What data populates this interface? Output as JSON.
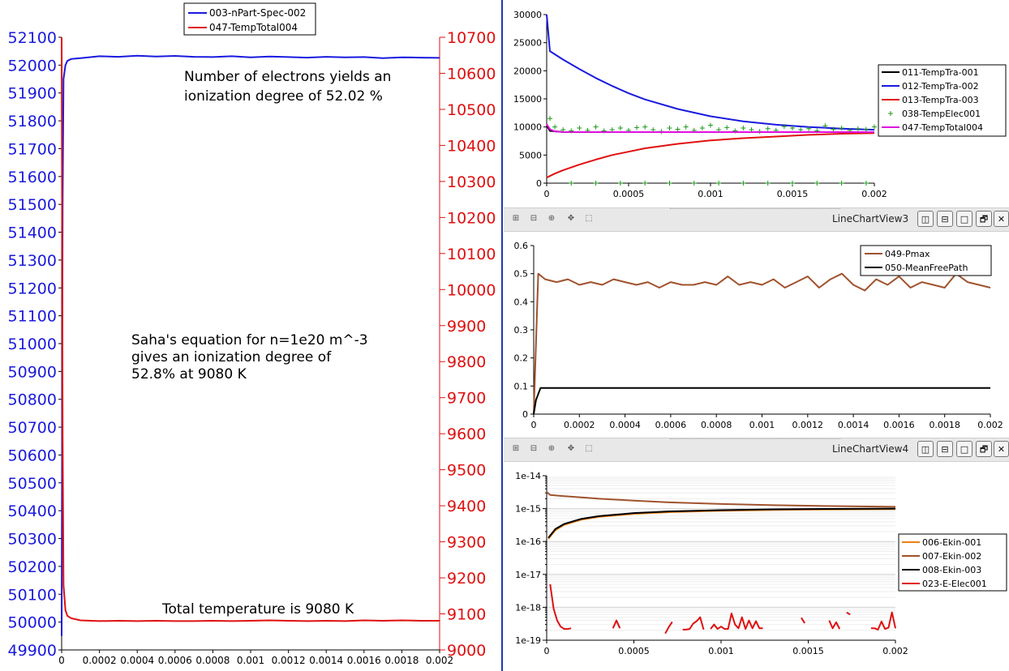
{
  "left_chart": {
    "annotations": {
      "electrons_l1": "Number of electrons yields an",
      "electrons_l2": "ionization degree of 52.02 %",
      "saha_l1": "Saha's equation for n=1e20 m^-3",
      "saha_l2": "gives an ionization degree of",
      "saha_l3": "52.8% at 9080 K",
      "temperature": "Total temperature is 9080 K"
    },
    "legend": [
      "003-nPart-Spec-002",
      "047-TempTotal004"
    ]
  },
  "view3": {
    "title": "LineChartView3"
  },
  "view4": {
    "title": "LineChartView4"
  },
  "window_buttons": {
    "split_h": "◫",
    "split_v": "⊟",
    "maximize": "□",
    "restore": "🗗",
    "close": "✕"
  },
  "toolbar_icons": [
    "zoom-to-data-icon",
    "zoom-out-icon",
    "zoom-in-icon",
    "pick-icon",
    "select-icon"
  ],
  "colors": {
    "blue": "#1a1adf",
    "red": "#e01010",
    "black": "#000000",
    "brown": "#a0522d",
    "green": "#1a9a1a",
    "magenta": "#e010e0",
    "orange": "#f08010",
    "divider": "#2436b8"
  },
  "chart_data": [
    {
      "type": "line",
      "id": "left",
      "xlim": [
        0,
        0.002
      ],
      "xticks": [
        "0",
        "0.0002",
        "0.0004",
        "0.0006",
        "0.0008",
        "0.001",
        "0.0012",
        "0.0014",
        "0.0016",
        "0.0018",
        "0.002"
      ],
      "y_left": {
        "lim": [
          49900,
          52100
        ],
        "ticks": [
          "49900",
          "50000",
          "50100",
          "50200",
          "50300",
          "50400",
          "50500",
          "50600",
          "50700",
          "50800",
          "50900",
          "51000",
          "51100",
          "51200",
          "51300",
          "51400",
          "51500",
          "51600",
          "51700",
          "51800",
          "51900",
          "52000",
          "52100"
        ],
        "color": "#1a1adf"
      },
      "y_right": {
        "lim": [
          9000,
          10700
        ],
        "ticks": [
          "9000",
          "9100",
          "9200",
          "9300",
          "9400",
          "9500",
          "9600",
          "9700",
          "9800",
          "9900",
          "10000",
          "10100",
          "10200",
          "10300",
          "10400",
          "10500",
          "10600",
          "10700"
        ],
        "color": "#e01010"
      },
      "series": [
        {
          "name": "003-nPart-Spec-002",
          "axis": "left",
          "color": "#1a1adf",
          "x": [
            0,
            5e-06,
            1e-05,
            2e-05,
            3e-05,
            5e-05,
            0.0001,
            0.0002,
            0.0003,
            0.0004,
            0.0005,
            0.0006,
            0.0007,
            0.0008,
            0.0009,
            0.001,
            0.0011,
            0.0012,
            0.0013,
            0.0014,
            0.0015,
            0.0016,
            0.0017,
            0.0018,
            0.0019,
            0.002
          ],
          "y": [
            49950,
            51500,
            51950,
            52000,
            52015,
            52022,
            52025,
            52032,
            52030,
            52034,
            52031,
            52033,
            52030,
            52029,
            52032,
            52028,
            52031,
            52029,
            52027,
            52030,
            52028,
            52029,
            52025,
            52028,
            52027,
            52026
          ]
        },
        {
          "name": "047-TempTotal004",
          "axis": "right",
          "color": "#e01010",
          "x": [
            0,
            5e-06,
            1e-05,
            2e-05,
            3e-05,
            5e-05,
            0.0001,
            0.0002,
            0.0003,
            0.0004,
            0.0005,
            0.0006,
            0.0007,
            0.0008,
            0.0009,
            0.001,
            0.0011,
            0.0012,
            0.0013,
            0.0014,
            0.0015,
            0.0016,
            0.0017,
            0.0018,
            0.0019,
            0.002
          ],
          "y": [
            10700,
            9600,
            9180,
            9110,
            9095,
            9088,
            9082,
            9080,
            9081,
            9080,
            9081,
            9080,
            9080,
            9081,
            9080,
            9081,
            9082,
            9081,
            9080,
            9081,
            9080,
            9082,
            9081,
            9082,
            9081,
            9081
          ]
        }
      ]
    },
    {
      "type": "line",
      "id": "top-right",
      "xlim": [
        0,
        0.002
      ],
      "xticks": [
        "0",
        "0.0005",
        "0.001",
        "0.0015",
        "0.002"
      ],
      "ylim": [
        0,
        30000
      ],
      "yticks": [
        "0",
        "5000",
        "10000",
        "15000",
        "20000",
        "25000",
        "30000"
      ],
      "legend": [
        "011-TempTra-001",
        "012-TempTra-002",
        "013-TempTra-003",
        "038-TempElec001",
        "047-TempTotal004"
      ],
      "series": [
        {
          "name": "011-TempTra-001",
          "color": "#000000",
          "x": [
            0,
            2e-05,
            0.0001,
            0.0005,
            0.001,
            0.0015,
            0.002
          ],
          "y": [
            10300,
            9300,
            9100,
            9080,
            9080,
            9080,
            9080
          ]
        },
        {
          "name": "012-TempTra-002",
          "color": "#1a1adf",
          "x": [
            0,
            2e-05,
            0.0001,
            0.0002,
            0.0003,
            0.0004,
            0.0005,
            0.0006,
            0.0008,
            0.001,
            0.0012,
            0.0014,
            0.0016,
            0.0018,
            0.002
          ],
          "y": [
            30000,
            23500,
            22000,
            20300,
            18700,
            17300,
            16000,
            14900,
            13200,
            11900,
            11000,
            10400,
            10000,
            9700,
            9500
          ]
        },
        {
          "name": "013-TempTra-003",
          "color": "#e01010",
          "x": [
            0,
            5e-05,
            0.0001,
            0.0002,
            0.0003,
            0.0004,
            0.0005,
            0.0006,
            0.0008,
            0.001,
            0.0012,
            0.0014,
            0.0016,
            0.0018,
            0.002
          ],
          "y": [
            1000,
            1700,
            2300,
            3300,
            4200,
            5000,
            5600,
            6200,
            7000,
            7600,
            8000,
            8300,
            8600,
            8800,
            8900
          ]
        },
        {
          "name": "038-TempElec001",
          "color": "#1a9a1a",
          "marker": "+",
          "x": [
            2e-05,
            5e-05,
            0.0001,
            0.00015,
            0.0002,
            0.00025,
            0.0003,
            0.00035,
            0.0004,
            0.00045,
            0.0005,
            0.00055,
            0.0006,
            0.00065,
            0.0007,
            0.00075,
            0.0008,
            0.00085,
            0.0009,
            0.00095,
            0.001,
            0.00105,
            0.0011,
            0.00115,
            0.0012,
            0.00125,
            0.0013,
            0.00135,
            0.0014,
            0.00145,
            0.0015,
            0.00155,
            0.0016,
            0.00165,
            0.0017,
            0.00175,
            0.0018,
            0.00185,
            0.0019,
            0.00195,
            0.002,
            0.00015,
            0.0003,
            0.00045,
            0.0006,
            0.00075,
            0.0009,
            0.00105,
            0.0012,
            0.00135,
            0.0015,
            0.00165,
            0.0018,
            0.00195
          ],
          "y": [
            11500,
            10000,
            9500,
            9300,
            9800,
            9400,
            10000,
            9300,
            9500,
            9800,
            9400,
            9900,
            10000,
            9500,
            9200,
            9800,
            9600,
            10000,
            9400,
            9800,
            10300,
            9500,
            9900,
            9300,
            9800,
            9500,
            9200,
            9700,
            9400,
            10100,
            9800,
            9500,
            9700,
            9300,
            10200,
            9600,
            9800,
            9400,
            9700,
            9600,
            10000,
            0,
            0,
            0,
            0,
            0,
            0,
            0,
            0,
            0,
            0,
            0,
            0,
            0
          ]
        },
        {
          "name": "047-TempTotal004",
          "color": "#e010e0",
          "x": [
            0,
            2e-05,
            5e-05,
            0.0001,
            0.0005,
            0.001,
            0.0015,
            0.002
          ],
          "y": [
            10500,
            9600,
            9200,
            9100,
            9080,
            9080,
            9080,
            9080
          ]
        }
      ]
    },
    {
      "type": "line",
      "id": "view3",
      "xlim": [
        0,
        0.002
      ],
      "xticks": [
        "0",
        "0.0002",
        "0.0004",
        "0.0006",
        "0.0008",
        "0.001",
        "0.0012",
        "0.0014",
        "0.0016",
        "0.0018",
        "0.002"
      ],
      "ylim": [
        0,
        0.6
      ],
      "yticks": [
        "0",
        "0.1",
        "0.2",
        "0.3",
        "0.4",
        "0.5",
        "0.6"
      ],
      "legend": [
        "049-Pmax",
        "050-MeanFreePath"
      ],
      "series": [
        {
          "name": "049-Pmax",
          "color": "#a0522d",
          "x": [
            0,
            2e-05,
            5e-05,
            0.0001,
            0.00015,
            0.0002,
            0.00025,
            0.0003,
            0.00035,
            0.0004,
            0.00045,
            0.0005,
            0.00055,
            0.0006,
            0.00065,
            0.0007,
            0.00075,
            0.0008,
            0.00085,
            0.0009,
            0.00095,
            0.001,
            0.00105,
            0.0011,
            0.00115,
            0.0012,
            0.00125,
            0.0013,
            0.00135,
            0.0014,
            0.00145,
            0.0015,
            0.00155,
            0.0016,
            0.00165,
            0.0017,
            0.00175,
            0.0018,
            0.00185,
            0.0019,
            0.00195,
            0.002
          ],
          "y": [
            0,
            0.5,
            0.48,
            0.47,
            0.48,
            0.46,
            0.47,
            0.46,
            0.48,
            0.47,
            0.46,
            0.47,
            0.45,
            0.47,
            0.46,
            0.46,
            0.47,
            0.46,
            0.49,
            0.46,
            0.47,
            0.46,
            0.48,
            0.45,
            0.47,
            0.49,
            0.45,
            0.48,
            0.5,
            0.46,
            0.44,
            0.48,
            0.46,
            0.49,
            0.45,
            0.47,
            0.46,
            0.45,
            0.5,
            0.47,
            0.46,
            0.45
          ]
        },
        {
          "name": "050-MeanFreePath",
          "color": "#000000",
          "x": [
            0,
            1e-05,
            3e-05,
            0.0001,
            0.0005,
            0.001,
            0.0015,
            0.002
          ],
          "y": [
            0,
            0.05,
            0.093,
            0.093,
            0.093,
            0.093,
            0.093,
            0.093
          ]
        }
      ]
    },
    {
      "type": "line",
      "id": "view4",
      "scale": "log",
      "xlim": [
        0,
        0.002
      ],
      "xticks": [
        "0",
        "0.0005",
        "0.001",
        "0.0015",
        "0.002"
      ],
      "ylim": [
        1e-19,
        1e-14
      ],
      "yticks": [
        "1e-19",
        "1e-18",
        "1e-17",
        "1e-16",
        "1e-15",
        "1e-14"
      ],
      "legend": [
        "006-Ekin-001",
        "007-Ekin-002",
        "008-Ekin-003",
        "023-E-Elec001"
      ],
      "series": [
        {
          "name": "006-Ekin-001",
          "color": "#f08010",
          "x": [
            1e-05,
            5e-05,
            0.0001,
            0.0002,
            0.0003,
            0.0005,
            0.0007,
            0.001,
            0.0013,
            0.0016,
            0.002
          ],
          "y": [
            1.2e-16,
            2.2e-16,
            3.2e-16,
            4.6e-16,
            5.6e-16,
            6.9e-16,
            7.8e-16,
            8.6e-16,
            9.1e-16,
            9.4e-16,
            9.6e-16
          ]
        },
        {
          "name": "007-Ekin-002",
          "color": "#a0522d",
          "x": [
            0,
            2e-05,
            0.0001,
            0.0002,
            0.0003,
            0.0005,
            0.0007,
            0.001,
            0.0013,
            0.0016,
            0.002
          ],
          "y": [
            3.2e-15,
            2.6e-15,
            2.4e-15,
            2.2e-15,
            2e-15,
            1.75e-15,
            1.55e-15,
            1.38e-15,
            1.27e-15,
            1.2e-15,
            1.13e-15
          ]
        },
        {
          "name": "008-Ekin-003",
          "color": "#000000",
          "x": [
            1e-05,
            5e-05,
            0.0001,
            0.0002,
            0.0003,
            0.0005,
            0.0007,
            0.001,
            0.0013,
            0.0016,
            0.002
          ],
          "y": [
            1.3e-16,
            2.4e-16,
            3.4e-16,
            4.9e-16,
            5.9e-16,
            7.3e-16,
            8.2e-16,
            9e-16,
            9.5e-16,
            9.8e-16,
            1e-15
          ]
        },
        {
          "name": "023-E-Elec001",
          "color": "#e01010",
          "segments": [
            {
              "x": [
                2e-05,
                4e-05,
                6e-05,
                8e-05,
                0.0001,
                0.00012,
                0.00014
              ],
              "y": [
                5e-18,
                9e-19,
                4e-19,
                2.6e-19,
                2.2e-19,
                2.2e-19,
                2.3e-19
              ]
            },
            {
              "x": [
                0.00038,
                0.0004,
                0.00042
              ],
              "y": [
                2.3e-19,
                4e-19,
                2.3e-19
              ]
            },
            {
              "x": [
                0.00068,
                0.0007,
                0.00072
              ],
              "y": [
                1.6e-19,
                2.5e-19,
                3.6e-19
              ]
            },
            {
              "x": [
                0.00078,
                0.0008,
                0.00082,
                0.00084,
                0.00086,
                0.00088,
                0.0009
              ],
              "y": [
                2.1e-19,
                2.1e-19,
                2.2e-19,
                3.2e-19,
                3.8e-19,
                5e-19,
                2.1e-19
              ]
            },
            {
              "x": [
                0.00094,
                0.00096,
                0.00098,
                0.001,
                0.00102,
                0.00104,
                0.00106,
                0.00108,
                0.0011,
                0.00112,
                0.00114,
                0.00116,
                0.00118,
                0.0012,
                0.00122,
                0.00124
              ],
              "y": [
                2.2e-19,
                3e-19,
                2.2e-19,
                2.6e-19,
                2.2e-19,
                2.2e-19,
                6.5e-19,
                3e-19,
                2.3e-19,
                5e-19,
                2.2e-19,
                4e-19,
                2.3e-19,
                3.8e-19,
                2.3e-19,
                2.3e-19
              ]
            },
            {
              "x": [
                0.00146,
                0.00148
              ],
              "y": [
                4.8e-19,
                3.3e-19
              ]
            },
            {
              "x": [
                0.00162,
                0.00164,
                0.00166,
                0.00168
              ],
              "y": [
                4e-19,
                2.3e-19,
                3.5e-19,
                2.2e-19
              ]
            },
            {
              "x": [
                0.00172,
                0.00174
              ],
              "y": [
                7e-19,
                6e-19
              ]
            },
            {
              "x": [
                0.00186,
                0.00188,
                0.0019,
                0.00192,
                0.00194,
                0.00196,
                0.00198,
                0.002
              ],
              "y": [
                2.3e-19,
                2.3e-19,
                2.1e-19,
                3.7e-19,
                2.2e-19,
                2.4e-19,
                7e-19,
                2.3e-19
              ]
            }
          ]
        }
      ]
    }
  ]
}
